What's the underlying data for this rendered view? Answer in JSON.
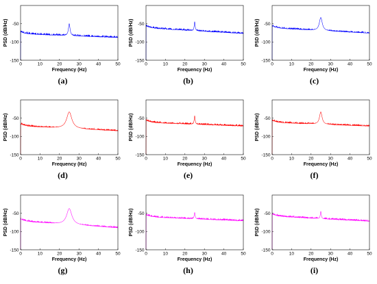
{
  "axes": {
    "xlabel": "Frequency (Hz)",
    "ylabel": "PSD (dB/Hz)",
    "x_ticks": [
      0,
      10,
      20,
      30,
      40,
      50
    ],
    "y_ticks": [
      -50,
      -100,
      -150
    ],
    "xlim": [
      0,
      50
    ],
    "ylim": [
      -150,
      0
    ]
  },
  "chart_data": [
    {
      "type": "line",
      "label": "(a)",
      "color": "#0000ff",
      "baseline_start": -78,
      "baseline_end": -88,
      "noise": 7,
      "peak_x": 25,
      "peak_y": -50,
      "peak_width": 0.5,
      "dip_depth": 22,
      "xlim": [
        0,
        50
      ],
      "ylim": [
        -150,
        0
      ],
      "xlabel": "Frequency (Hz)",
      "ylabel": "PSD (dB/Hz)",
      "grid": false
    },
    {
      "type": "line",
      "label": "(b)",
      "color": "#0000ff",
      "baseline_start": -62,
      "baseline_end": -77,
      "noise": 6,
      "peak_x": 25,
      "peak_y": -45,
      "peak_width": 0.3,
      "dip_depth": 18,
      "xlim": [
        0,
        50
      ],
      "ylim": [
        -150,
        0
      ],
      "xlabel": "Frequency (Hz)",
      "ylabel": "PSD (dB/Hz)",
      "grid": false
    },
    {
      "type": "line",
      "label": "(c)",
      "color": "#0000ff",
      "baseline_start": -62,
      "baseline_end": -76,
      "noise": 6,
      "peak_x": 25,
      "peak_y": -33,
      "peak_width": 0.9,
      "dip_depth": 16,
      "xlim": [
        0,
        50
      ],
      "ylim": [
        -150,
        0
      ],
      "xlabel": "Frequency (Hz)",
      "ylabel": "PSD (dB/Hz)",
      "grid": false
    },
    {
      "type": "line",
      "label": "(d)",
      "color": "#ff0000",
      "baseline_start": -72,
      "baseline_end": -85,
      "noise": 6,
      "peak_x": 25,
      "peak_y": -33,
      "peak_width": 1.6,
      "dip_depth": 22,
      "xlim": [
        0,
        50
      ],
      "ylim": [
        -150,
        0
      ],
      "xlabel": "Frequency (Hz)",
      "ylabel": "PSD (dB/Hz)",
      "grid": false
    },
    {
      "type": "line",
      "label": "(e)",
      "color": "#ff0000",
      "baseline_start": -62,
      "baseline_end": -72,
      "noise": 6,
      "peak_x": 25,
      "peak_y": -44,
      "peak_width": 0.3,
      "dip_depth": 18,
      "xlim": [
        0,
        50
      ],
      "ylim": [
        -150,
        0
      ],
      "xlabel": "Frequency (Hz)",
      "ylabel": "PSD (dB/Hz)",
      "grid": false
    },
    {
      "type": "line",
      "label": "(f)",
      "color": "#ff0000",
      "baseline_start": -62,
      "baseline_end": -72,
      "noise": 6,
      "peak_x": 25,
      "peak_y": -33,
      "peak_width": 0.8,
      "dip_depth": 16,
      "xlim": [
        0,
        50
      ],
      "ylim": [
        -150,
        0
      ],
      "xlabel": "Frequency (Hz)",
      "ylabel": "PSD (dB/Hz)",
      "grid": false
    },
    {
      "type": "line",
      "label": "(g)",
      "color": "#ff00ff",
      "baseline_start": -72,
      "baseline_end": -90,
      "noise": 6,
      "peak_x": 25,
      "peak_y": -37,
      "peak_width": 1.6,
      "dip_depth": 24,
      "xlim": [
        0,
        50
      ],
      "ylim": [
        -150,
        0
      ],
      "xlabel": "Frequency (Hz)",
      "ylabel": "PSD (dB/Hz)",
      "grid": false
    },
    {
      "type": "line",
      "label": "(h)",
      "color": "#ff00ff",
      "baseline_start": -60,
      "baseline_end": -71,
      "noise": 6,
      "peak_x": 25,
      "peak_y": -48,
      "peak_width": 0.3,
      "dip_depth": 18,
      "xlim": [
        0,
        50
      ],
      "ylim": [
        -150,
        0
      ],
      "xlabel": "Frequency (Hz)",
      "ylabel": "PSD (dB/Hz)",
      "grid": false
    },
    {
      "type": "line",
      "label": "(i)",
      "color": "#ff00ff",
      "baseline_start": -58,
      "baseline_end": -72,
      "noise": 6,
      "peak_x": 25,
      "peak_y": -45,
      "peak_width": 0.3,
      "dip_depth": 18,
      "xlim": [
        0,
        50
      ],
      "ylim": [
        -150,
        0
      ],
      "xlabel": "Frequency (Hz)",
      "ylabel": "PSD (dB/Hz)",
      "grid": false
    }
  ]
}
